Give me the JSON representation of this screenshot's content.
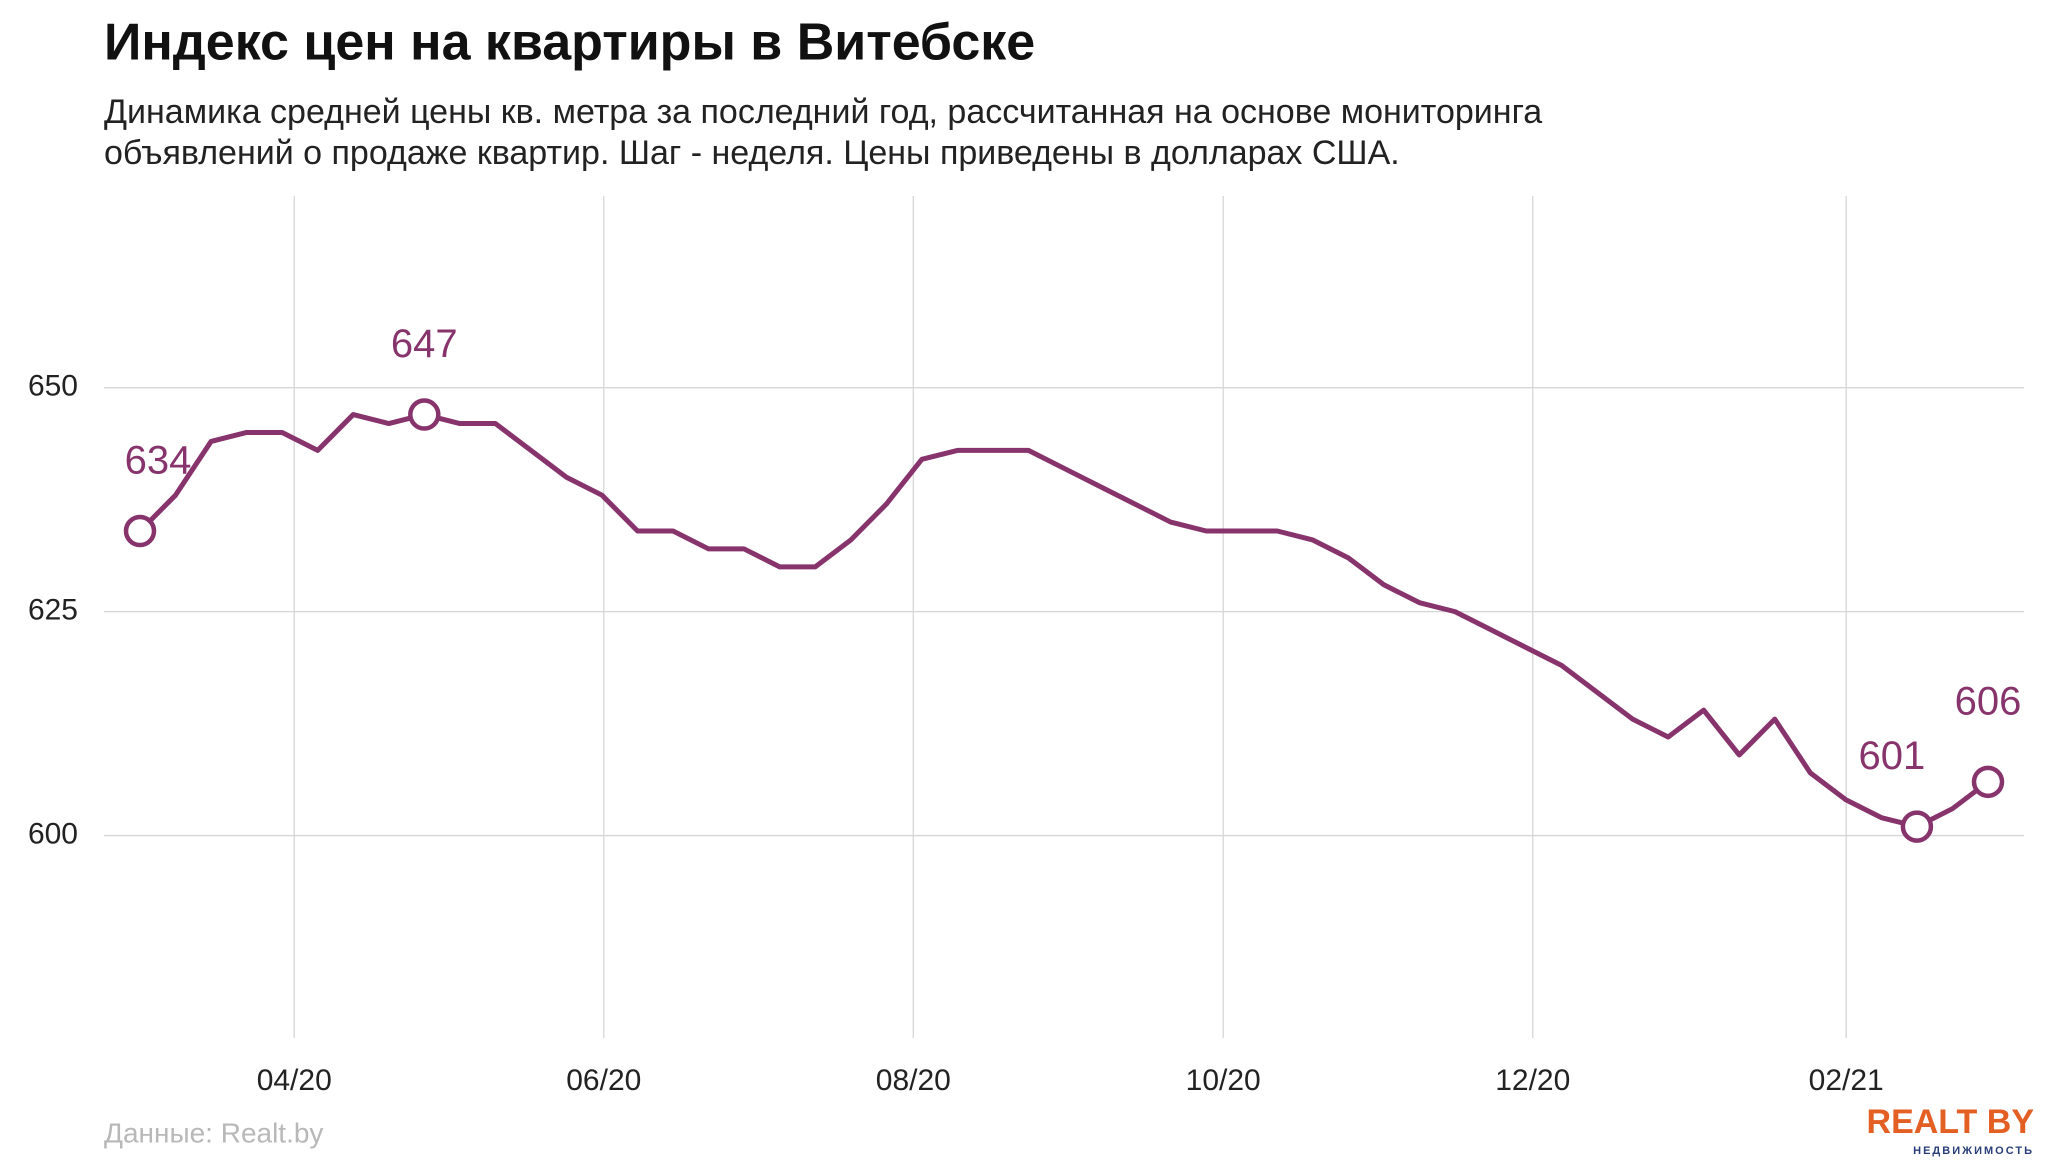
{
  "chart_data": {
    "type": "line",
    "title": "Индекс цен на квартиры в Витебске",
    "subtitle": [
      "Динамика средней цены кв. метра за последний год, рассчитанная на основе мониторинга",
      "объявлений о продаже квартир. Шаг - неделя. Цены приведены в долларах США."
    ],
    "source": "Данные: Realt.by",
    "logo": {
      "name": "REALT BY",
      "tagline": "НЕДВИЖИМОСТЬ"
    },
    "categories": [
      null,
      null,
      null,
      null,
      null,
      null,
      null,
      null,
      null,
      null,
      null,
      null,
      null,
      null,
      null,
      null,
      null,
      null,
      null,
      null,
      null,
      null,
      null,
      null,
      null,
      null,
      null,
      null,
      null,
      null,
      null,
      null,
      null,
      null,
      null,
      null,
      null,
      null,
      null,
      null,
      null,
      null,
      null,
      null,
      null,
      null,
      null,
      null,
      null,
      null,
      null,
      null,
      null
    ],
    "series": [
      {
        "name": "Индекс цен",
        "color": "#87336c",
        "values": [
          634,
          638,
          644,
          645,
          645,
          643,
          647,
          646,
          647,
          646,
          646,
          643,
          640,
          638,
          634,
          634,
          632,
          632,
          630,
          630,
          633,
          637,
          642,
          643,
          643,
          643,
          641,
          639,
          637,
          635,
          634,
          634,
          634,
          633,
          631,
          628,
          626,
          625,
          623,
          621,
          619,
          616,
          613,
          611,
          614,
          609,
          613,
          607,
          604,
          602,
          601,
          603,
          606
        ]
      }
    ],
    "labeled_points": [
      0,
      8,
      50,
      52
    ],
    "xticks": [
      {
        "value": 4.34,
        "label": "04/20"
      },
      {
        "value": 13.05,
        "label": "06/20"
      },
      {
        "value": 21.76,
        "label": "08/20"
      },
      {
        "value": 30.48,
        "label": "10/20"
      },
      {
        "value": 39.19,
        "label": "12/20"
      },
      {
        "value": 48.01,
        "label": "02/21"
      }
    ],
    "ylim": [
      577.4,
      671.4
    ],
    "yticks": [
      600,
      625,
      650
    ],
    "grid": true
  }
}
